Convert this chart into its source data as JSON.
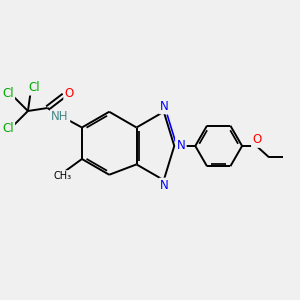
{
  "bg_color": "#f0f0f0",
  "bond_color": "#000000",
  "bond_lw": 1.4,
  "cl_color": "#00aa00",
  "n_color": "#0000ff",
  "o_color": "#ff0000",
  "nh_color": "#000000",
  "c_color": "#000000",
  "font_size_atom": 8.5,
  "figsize": [
    3.0,
    3.0
  ],
  "dpi": 100,
  "xlim": [
    0,
    10
  ],
  "ylim": [
    0,
    10
  ]
}
